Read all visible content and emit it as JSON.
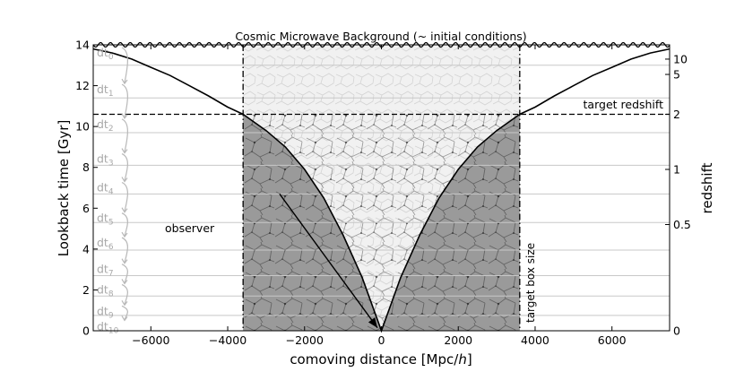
{
  "chart_data": {
    "type": "line",
    "title": "Cosmic Microwave Background (~ initial conditions)",
    "xlabel": "comoving distance [Mpc/h]",
    "ylabel": "Lookback time [Gyr]",
    "ylabel_right": "redshift",
    "xlim": [
      -7500,
      7500
    ],
    "ylim": [
      0,
      14
    ],
    "grid": false,
    "x_ticks": [
      -6000,
      -4000,
      -2000,
      0,
      2000,
      4000,
      6000
    ],
    "x_tick_labels": [
      "−6000",
      "−4000",
      "−2000",
      "0",
      "2000",
      "4000",
      "6000"
    ],
    "y_ticks": [
      0,
      2,
      4,
      6,
      8,
      10,
      12,
      14
    ],
    "y_tick_labels": [
      "0",
      "2",
      "4",
      "6",
      "8",
      "10",
      "12",
      "14"
    ],
    "redshift_ticks": [
      {
        "label": "10",
        "lookback": 13.3
      },
      {
        "label": "5",
        "lookback": 12.55
      },
      {
        "label": "2",
        "lookback": 10.6
      },
      {
        "label": "1",
        "lookback": 7.9
      },
      {
        "label": "0.5",
        "lookback": 5.2
      },
      {
        "label": "0",
        "lookback": 0
      }
    ],
    "series": [
      {
        "role": "light cone (past boundary)",
        "x": [
          -7500,
          -7000,
          -6500,
          -6000,
          -5500,
          -5000,
          -4500,
          -4000,
          -3600,
          -3000,
          -2500,
          -2000,
          -1500,
          -1000,
          -500,
          0,
          500,
          1000,
          1500,
          2000,
          2500,
          3000,
          3600,
          4000,
          4500,
          5000,
          5500,
          6000,
          6500,
          7000,
          7500
        ],
        "y": [
          13.8,
          13.6,
          13.3,
          12.9,
          12.5,
          12.0,
          11.5,
          10.95,
          10.6,
          9.8,
          9.0,
          7.9,
          6.5,
          4.7,
          2.6,
          0.0,
          2.6,
          4.7,
          6.5,
          7.9,
          9.0,
          9.8,
          10.6,
          10.95,
          11.5,
          12.0,
          12.5,
          12.9,
          13.3,
          13.6,
          13.8
        ]
      }
    ],
    "target_redshift_lookback": 10.6,
    "target_box_halfwidth": 3600,
    "time_steps": [
      {
        "label": "dt",
        "sub": "0",
        "y": 13.6
      },
      {
        "label": "dt",
        "sub": "1",
        "y": 11.8
      },
      {
        "label": "dt",
        "sub": "2",
        "y": 10.1
      },
      {
        "label": "dt",
        "sub": "3",
        "y": 8.4
      },
      {
        "label": "dt",
        "sub": "4",
        "y": 7.0
      },
      {
        "label": "dt",
        "sub": "5",
        "y": 5.5
      },
      {
        "label": "dt",
        "sub": "6",
        "y": 4.3
      },
      {
        "label": "dt",
        "sub": "7",
        "y": 3.0
      },
      {
        "label": "dt",
        "sub": "8",
        "y": 2.0
      },
      {
        "label": "dt",
        "sub": "9",
        "y": 0.95
      },
      {
        "label": "dt",
        "sub": "10",
        "y": 0.2
      }
    ],
    "time_step_boundaries": [
      13.0,
      11.4,
      9.7,
      8.1,
      6.7,
      5.3,
      3.95,
      2.7,
      1.7,
      0.75
    ],
    "annotations": [
      {
        "text": "target redshift",
        "kind": "horizontal-line-label"
      },
      {
        "text": "target box size",
        "kind": "vertical-line-label"
      },
      {
        "text": "observer",
        "kind": "arrow",
        "from": [
          -2650,
          6.7
        ],
        "to": [
          -150,
          0.1
        ]
      }
    ]
  }
}
